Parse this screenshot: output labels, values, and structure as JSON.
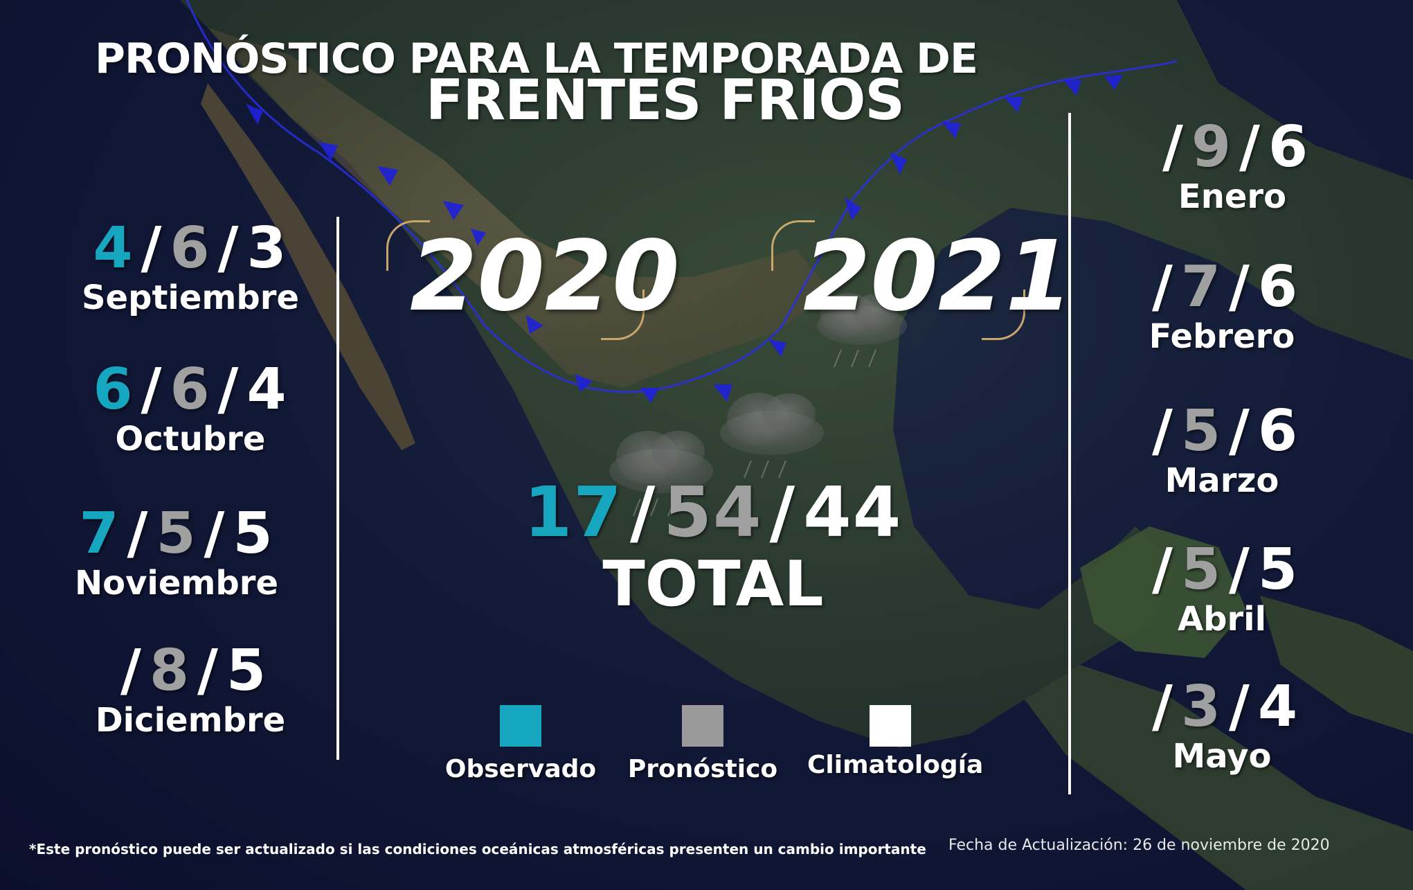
{
  "title": {
    "line1": "PRONÓSTICO PARA LA TEMPORADA DE",
    "line2": "FRENTES FRÍOS"
  },
  "years": {
    "left": "2020",
    "right": "2021"
  },
  "months": {
    "sep": {
      "name": "Septiembre",
      "observed": "4",
      "forecast": "6",
      "climatology": "3"
    },
    "oct": {
      "name": "Octubre",
      "observed": "6",
      "forecast": "6",
      "climatology": "4"
    },
    "nov": {
      "name": "Noviembre",
      "observed": "7",
      "forecast": "5",
      "climatology": "5"
    },
    "dic": {
      "name": "Diciembre",
      "observed": "",
      "forecast": "8",
      "climatology": "5"
    },
    "ene": {
      "name": "Enero",
      "observed": "",
      "forecast": "9",
      "climatology": "6"
    },
    "feb": {
      "name": "Febrero",
      "observed": "",
      "forecast": "7",
      "climatology": "6"
    },
    "mar": {
      "name": "Marzo",
      "observed": "",
      "forecast": "5",
      "climatology": "6"
    },
    "abr": {
      "name": "Abril",
      "observed": "",
      "forecast": "5",
      "climatology": "5"
    },
    "may": {
      "name": "Mayo",
      "observed": "",
      "forecast": "3",
      "climatology": "4"
    }
  },
  "total": {
    "label": "TOTAL",
    "observed": "17",
    "forecast": "54",
    "climatology": "44"
  },
  "separator": "/",
  "legend": {
    "observed": "Observado",
    "forecast": "Pronóstico",
    "climatology": "Climatología"
  },
  "colors": {
    "observed": "#16a6c0",
    "forecast": "#a0a0a0",
    "climatology": "#ffffff",
    "front": "#1f22d8",
    "bracket": "#c9a66b"
  },
  "footnote": "*Este pronóstico puede ser actualizado si las condiciones oceánicas atmosféricas presenten un cambio importante",
  "update_date": "Fecha de Actualización: 26 de noviembre de 2020"
}
